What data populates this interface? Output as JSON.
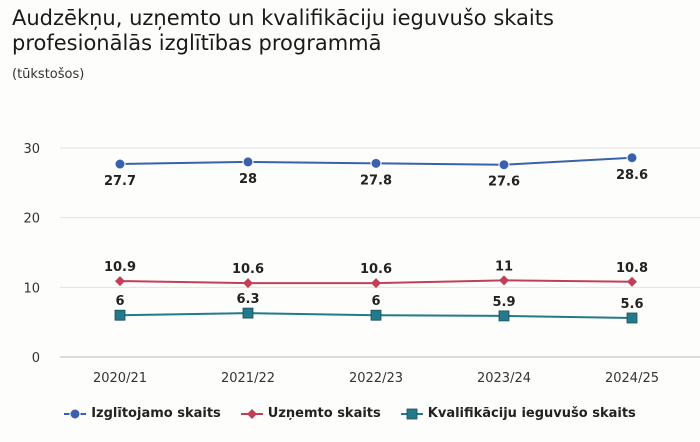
{
  "chart_data": {
    "type": "line",
    "title": "Audzēkņu, uzņemto un kvalifikāciju ieguvušo skaits profesionālās izglītības programmā",
    "subtitle": "(tūkstošos)",
    "categories": [
      "2020/21",
      "2021/22",
      "2022/23",
      "2023/24",
      "2024/25"
    ],
    "ylim": [
      0,
      30
    ],
    "yticks": [
      0,
      10,
      20,
      30
    ],
    "grid": true,
    "legend_position": "bottom",
    "series": [
      {
        "name": "Izglītojamo skaits",
        "values": [
          27.7,
          28,
          27.8,
          27.6,
          28.6
        ],
        "color": "#3a62ac",
        "marker": "circle"
      },
      {
        "name": "Uzņemto skaits",
        "values": [
          10.9,
          10.6,
          10.6,
          11,
          10.8
        ],
        "color": "#c0405a",
        "marker": "diamond"
      },
      {
        "name": "Kvalifikāciju ieguvušo skaits",
        "values": [
          6,
          6.3,
          6,
          5.9,
          5.6
        ],
        "color": "#227a8a",
        "marker": "square"
      }
    ]
  }
}
